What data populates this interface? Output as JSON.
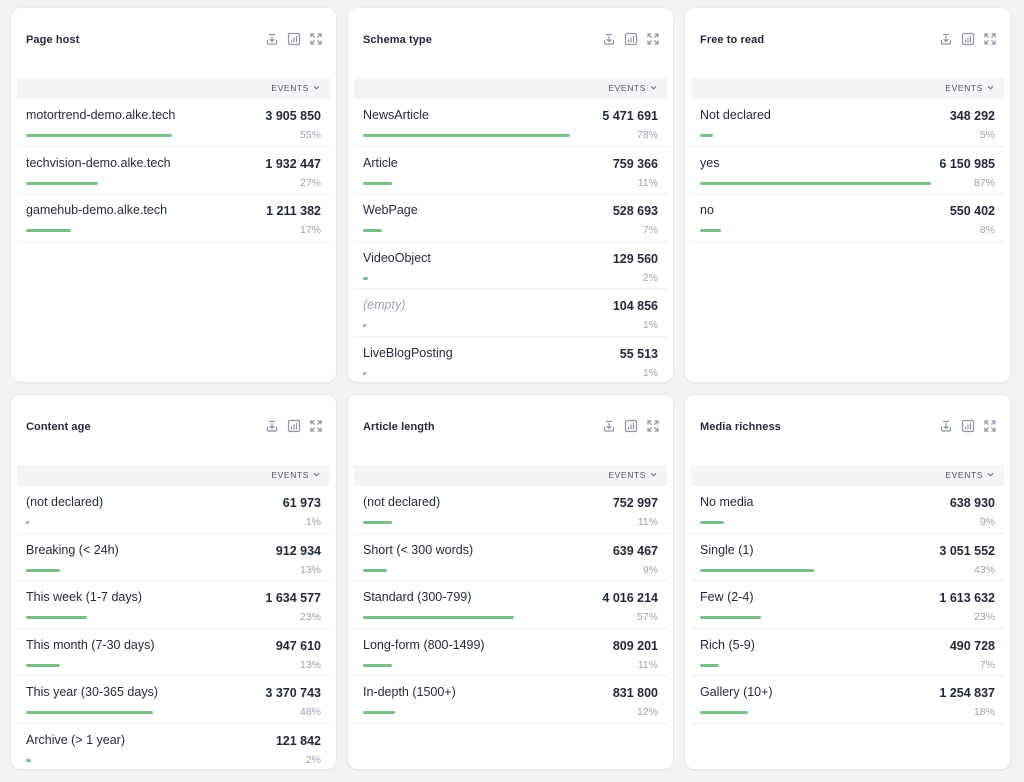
{
  "colors": {
    "bar": "#7bbf88",
    "background": "#f1f3f5",
    "card": "#ffffff"
  },
  "icons": [
    "download-icon",
    "chart-icon",
    "expand-icon",
    "chevron-down-icon"
  ],
  "panels": [
    {
      "title": "Page host",
      "column_label": "EVENTS",
      "rows": [
        {
          "label": "motortrend-demo.alke.tech",
          "value": "3 905 850",
          "pct": "55%",
          "share": 55
        },
        {
          "label": "techvision-demo.alke.tech",
          "value": "1 932 447",
          "pct": "27%",
          "share": 27
        },
        {
          "label": "gamehub-demo.alke.tech",
          "value": "1 211 382",
          "pct": "17%",
          "share": 17
        }
      ]
    },
    {
      "title": "Schema type",
      "column_label": "EVENTS",
      "rows": [
        {
          "label": "NewsArticle",
          "value": "5 471 691",
          "pct": "78%",
          "share": 78
        },
        {
          "label": "Article",
          "value": "759 366",
          "pct": "11%",
          "share": 11
        },
        {
          "label": "WebPage",
          "value": "528 693",
          "pct": "7%",
          "share": 7
        },
        {
          "label": "VideoObject",
          "value": "129 560",
          "pct": "2%",
          "share": 2
        },
        {
          "label": "(empty)",
          "value": "104 856",
          "pct": "1%",
          "share": 1,
          "empty": true
        },
        {
          "label": "LiveBlogPosting",
          "value": "55 513",
          "pct": "1%",
          "share": 1
        }
      ]
    },
    {
      "title": "Free to read",
      "column_label": "EVENTS",
      "rows": [
        {
          "label": "Not declared",
          "value": "348 292",
          "pct": "5%",
          "share": 5
        },
        {
          "label": "yes",
          "value": "6 150 985",
          "pct": "87%",
          "share": 87
        },
        {
          "label": "no",
          "value": "550 402",
          "pct": "8%",
          "share": 8
        }
      ]
    },
    {
      "title": "Content age",
      "column_label": "EVENTS",
      "rows": [
        {
          "label": "(not declared)",
          "value": "61 973",
          "pct": "1%",
          "share": 1
        },
        {
          "label": "Breaking (< 24h)",
          "value": "912 934",
          "pct": "13%",
          "share": 13
        },
        {
          "label": "This week (1-7 days)",
          "value": "1 634 577",
          "pct": "23%",
          "share": 23
        },
        {
          "label": "This month (7-30 days)",
          "value": "947 610",
          "pct": "13%",
          "share": 13
        },
        {
          "label": "This year (30-365 days)",
          "value": "3 370 743",
          "pct": "48%",
          "share": 48
        },
        {
          "label": "Archive (> 1 year)",
          "value": "121 842",
          "pct": "2%",
          "share": 2
        }
      ]
    },
    {
      "title": "Article length",
      "column_label": "EVENTS",
      "rows": [
        {
          "label": "(not declared)",
          "value": "752 997",
          "pct": "11%",
          "share": 11
        },
        {
          "label": "Short (< 300 words)",
          "value": "639 467",
          "pct": "9%",
          "share": 9
        },
        {
          "label": "Standard (300-799)",
          "value": "4 016 214",
          "pct": "57%",
          "share": 57
        },
        {
          "label": "Long-form (800-1499)",
          "value": "809 201",
          "pct": "11%",
          "share": 11
        },
        {
          "label": "In-depth (1500+)",
          "value": "831 800",
          "pct": "12%",
          "share": 12
        }
      ]
    },
    {
      "title": "Media richness",
      "column_label": "EVENTS",
      "rows": [
        {
          "label": "No media",
          "value": "638 930",
          "pct": "9%",
          "share": 9
        },
        {
          "label": "Single (1)",
          "value": "3 051 552",
          "pct": "43%",
          "share": 43
        },
        {
          "label": "Few (2-4)",
          "value": "1 613 632",
          "pct": "23%",
          "share": 23
        },
        {
          "label": "Rich (5-9)",
          "value": "490 728",
          "pct": "7%",
          "share": 7
        },
        {
          "label": "Gallery (10+)",
          "value": "1 254 837",
          "pct": "18%",
          "share": 18
        }
      ]
    }
  ]
}
